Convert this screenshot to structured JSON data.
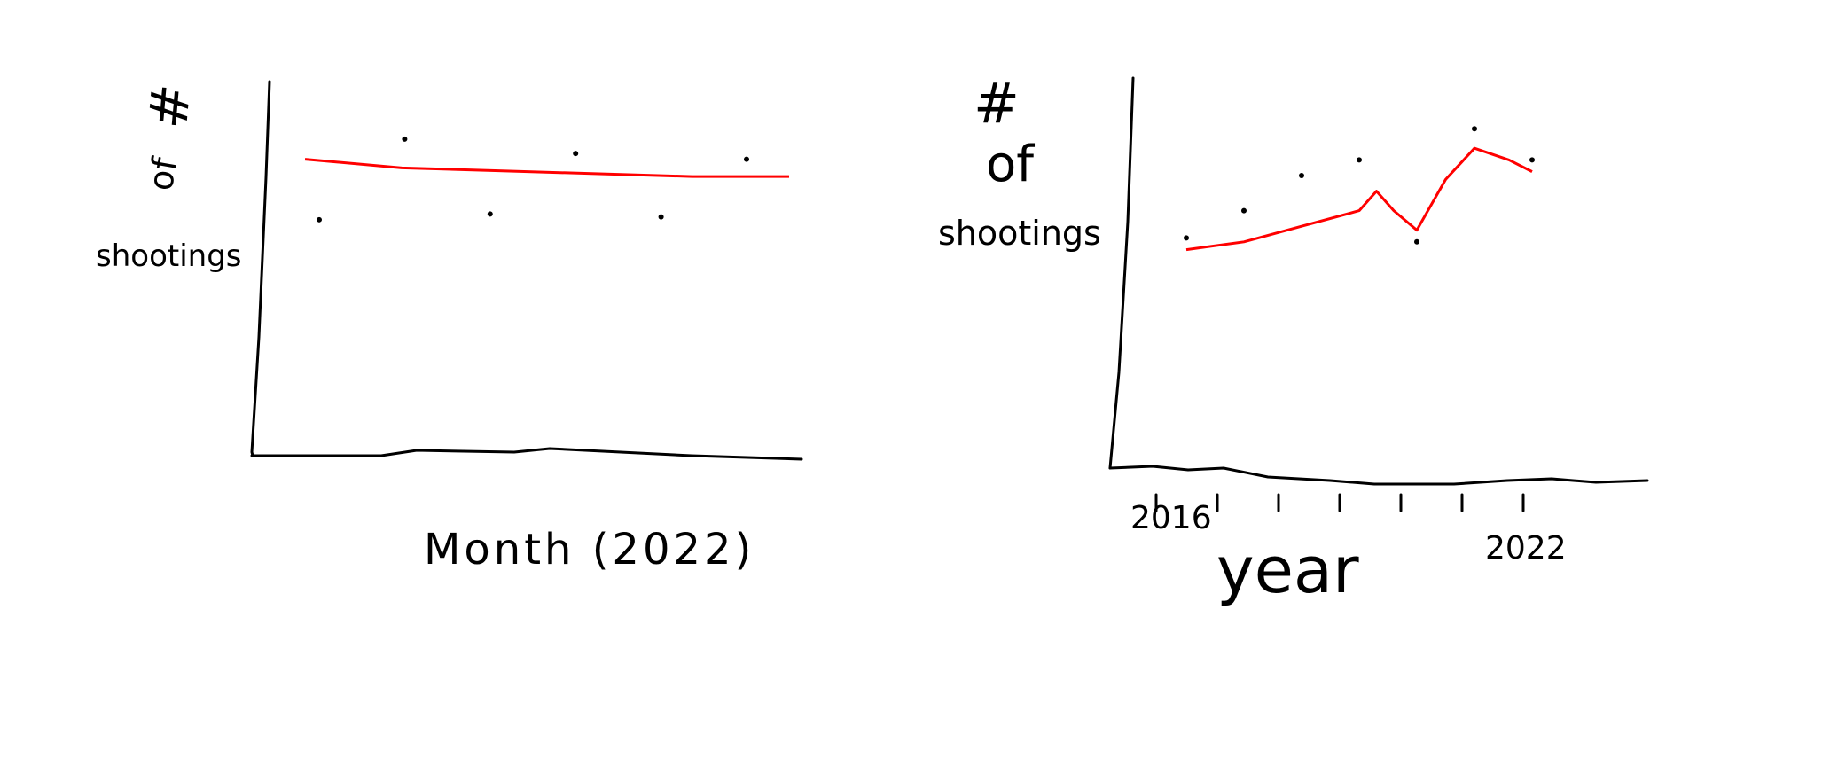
{
  "chart_data": [
    {
      "type": "scatter",
      "title": "",
      "xlabel": "Month (2022)",
      "ylabel_lines": [
        "#",
        "of",
        "shootings"
      ],
      "x": [
        1,
        2,
        3,
        4,
        5,
        6
      ],
      "y": [
        0.82,
        1.1,
        0.84,
        1.05,
        0.83,
        1.03
      ],
      "ylim": [
        0,
        1.3
      ],
      "trend": [
        1.03,
        1.0,
        0.99,
        0.98,
        0.97,
        0.97
      ],
      "trend_color": "#ff0000",
      "grid": false
    },
    {
      "type": "scatter",
      "title": "",
      "xlabel": "year",
      "ylabel_lines": [
        "#",
        "of",
        "shootings"
      ],
      "tick_labels": [
        "2016",
        "2022"
      ],
      "x": [
        2016,
        2017,
        2018,
        2019,
        2020,
        2021,
        2022
      ],
      "y": [
        0.59,
        0.66,
        0.75,
        0.79,
        0.58,
        0.87,
        0.79
      ],
      "ylim": [
        0,
        1.0
      ],
      "trend_x": [
        2016,
        2016.5,
        2017,
        2018,
        2019,
        2019.3,
        2019.6,
        2020,
        2020.5,
        2021,
        2021.6,
        2022
      ],
      "trend": [
        0.56,
        0.57,
        0.58,
        0.62,
        0.66,
        0.71,
        0.66,
        0.61,
        0.74,
        0.82,
        0.79,
        0.76
      ],
      "trend_color": "#ff0000",
      "grid": false
    }
  ]
}
